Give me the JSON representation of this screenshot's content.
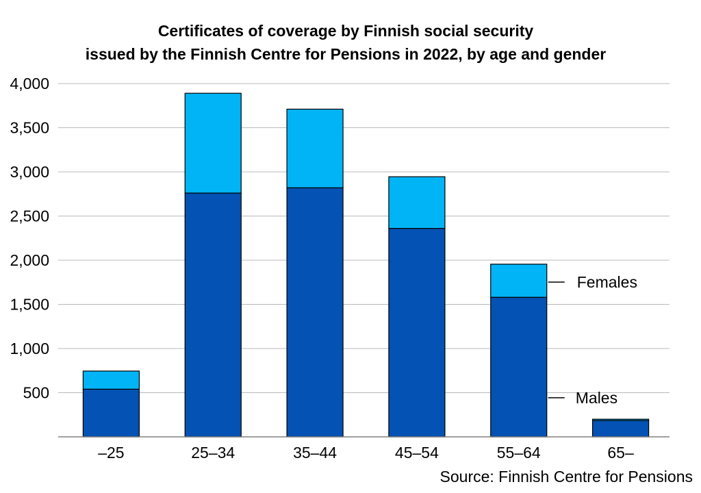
{
  "title_line1": "Certificates of coverage by Finnish social security",
  "title_line2": "issued by the Finnish Centre for Pensions in 2022, by age and gender",
  "source": "Source: Finnish Centre for Pensions",
  "colors": {
    "males": "#0452b3",
    "females": "#00b4f6",
    "grid": "#b8b8b8",
    "axis": "#808080"
  },
  "chart_data": {
    "type": "bar",
    "stacked": true,
    "categories": [
      "–25",
      "25–34",
      "35–44",
      "45–54",
      "55–64",
      "65–"
    ],
    "series": [
      {
        "name": "Males",
        "values": [
          540,
          2760,
          2820,
          2360,
          1580,
          185
        ]
      },
      {
        "name": "Females",
        "values": [
          205,
          1130,
          890,
          585,
          375,
          15
        ]
      }
    ],
    "yticks": [
      500,
      1000,
      1500,
      2000,
      2500,
      3000,
      3500,
      4000
    ],
    "ytick_labels": [
      "500",
      "1,000",
      "1,500",
      "2,000",
      "2,500",
      "3,000",
      "3,500",
      "4,000"
    ],
    "ylim": [
      0,
      4000
    ],
    "xlabel": "",
    "ylabel": "",
    "grid": true,
    "legend": "inline-right"
  }
}
